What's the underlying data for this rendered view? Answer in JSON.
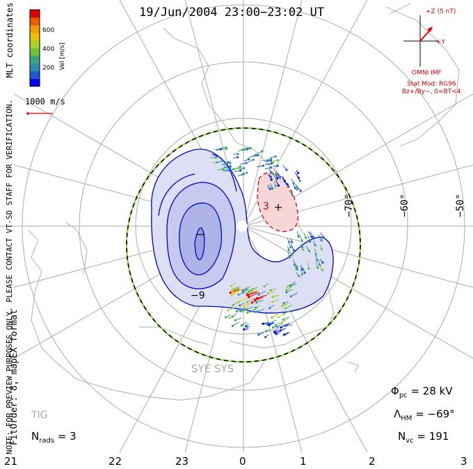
{
  "title": "19/Jun/2004 23:00−23:02 UT",
  "side_text": {
    "coordinates": "MLT coordinates",
    "note": "NOTE: FOR PREVIEW PURPOSES ONLY. PLEASE CONTACT VT-SD STAFF FOR VERIFICATION.",
    "fit_order": "FitOrder: 8, mapEX format"
  },
  "colorbar": {
    "label": "Vel [m/s]",
    "ticks": [
      "600",
      "400",
      "200"
    ],
    "colors": [
      "#0000ff",
      "#1e5ad2",
      "#2f8fa8",
      "#3ba57a",
      "#6cc23a",
      "#a8d12a",
      "#e8c400",
      "#f59a00",
      "#ef5a00",
      "#e00000"
    ]
  },
  "scale_vector": {
    "label": "1000 m/s"
  },
  "imf": {
    "z_label": "+Z (5 nT)",
    "y_label": "+Y",
    "title": "OMNI IMF",
    "stat_model": "Stat Mod: RG96",
    "conditions": "Bz+/By−, 0<BT<4"
  },
  "latitude_labels": [
    "−70°",
    "−60°",
    "−50°"
  ],
  "mlt_labels": [
    "21",
    "22",
    "23",
    "0",
    "1",
    "2",
    "3"
  ],
  "stations": [
    "SYE SYS",
    "TIG"
  ],
  "contour_labels": [
    "−9",
    "3"
  ],
  "stats": {
    "phi_pc_symbol": "Φ",
    "phi_pc_sub": "pc",
    "phi_pc_value": "= 28 kV",
    "lambda_hm_symbol": "Λ",
    "lambda_hm_sub": "HM",
    "lambda_hm_value": "= −69°",
    "n_vc_symbol": "N",
    "n_vc_sub": "vc",
    "n_vc_value": "= 191",
    "n_rads_symbol": "N",
    "n_rads_sub": "rads",
    "n_rads_value": "= 3"
  },
  "colors": {
    "negative_cell_fill": "#dde0f4",
    "negative_cell_inner": "#b7bbe6",
    "negative_contour": "#0000cc",
    "positive_cell_fill": "#f6d6d6",
    "positive_contour": "#cc0000",
    "grid": "#aaaaaa",
    "coast": "#bbbbbb",
    "boundary_green": "#88dd44"
  }
}
